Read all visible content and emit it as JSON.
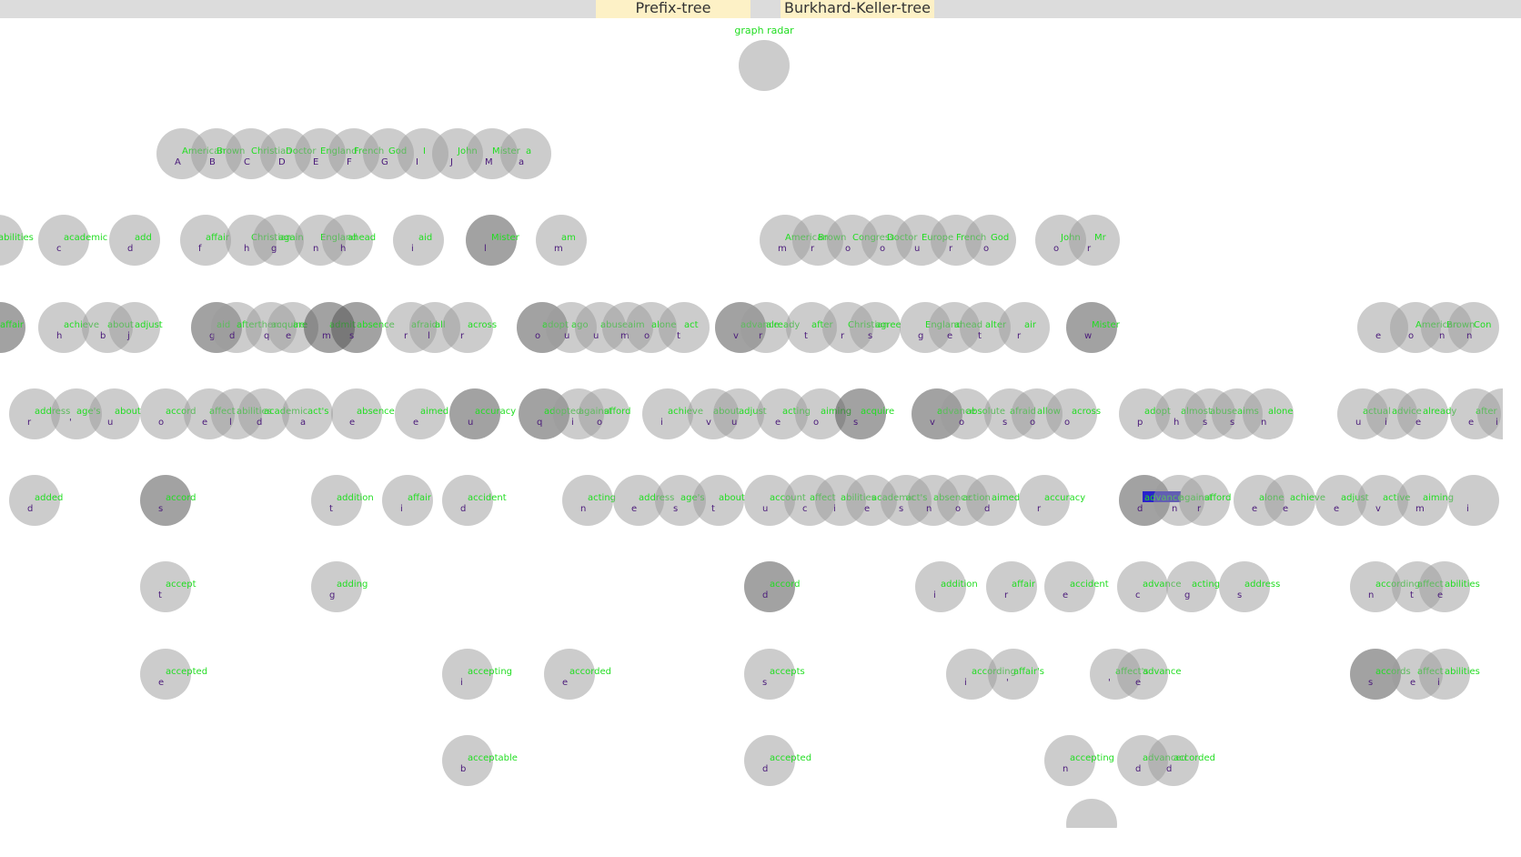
{
  "tabs": [
    {
      "label": "Prefix-tree",
      "selected": false
    },
    {
      "label": "Burkhard-Keller-tree",
      "selected": true
    }
  ],
  "root_caption": "graph radar",
  "highlighted_word": "advance",
  "colors": {
    "topbar": "#dcdcdc",
    "tab": "#fdf1c6",
    "node": "#9a9a9a",
    "node_selected": "#555555",
    "word_label": "#22dd22",
    "key_label": "#4a1a7a",
    "highlight": "#2a22cc"
  },
  "nodes": {
    "row1": [
      {
        "word": "American",
        "key": "A"
      },
      {
        "word": "Brown",
        "key": "B"
      },
      {
        "word": "Christian",
        "key": "C"
      },
      {
        "word": "Doctor",
        "key": "D"
      },
      {
        "word": "England",
        "key": "E"
      },
      {
        "word": "French",
        "key": "F"
      },
      {
        "word": "God",
        "key": "G"
      },
      {
        "word": "I",
        "key": "I"
      },
      {
        "word": "John",
        "key": "J"
      },
      {
        "word": "Mister",
        "key": "M"
      },
      {
        "word": "a",
        "key": "a"
      }
    ],
    "row2": [
      {
        "word": "abilities",
        "key": ""
      },
      {
        "word": "academic",
        "key": "c"
      },
      {
        "word": "add",
        "key": "d"
      },
      {
        "word": "affair",
        "key": "f"
      },
      {
        "word": "Christian",
        "key": "h"
      },
      {
        "word": "again",
        "key": "g"
      },
      {
        "word": "England",
        "key": "n"
      },
      {
        "word": "ahead",
        "key": "h"
      },
      {
        "word": "aid",
        "key": "i"
      },
      {
        "word": "Mister",
        "key": "l"
      },
      {
        "word": "am",
        "key": "m"
      },
      {
        "word": "American",
        "key": "m"
      },
      {
        "word": "Brown",
        "key": "r"
      },
      {
        "word": "Congress",
        "key": "o"
      },
      {
        "word": "Doctor",
        "key": "o"
      },
      {
        "word": "Europe",
        "key": "u"
      },
      {
        "word": "French",
        "key": "r"
      },
      {
        "word": "God",
        "key": "o"
      },
      {
        "word": "John",
        "key": "o"
      },
      {
        "word": "Mr",
        "key": "r"
      }
    ],
    "row3": [
      {
        "word": "affair",
        "key": "f"
      },
      {
        "word": "achieve",
        "key": "h"
      },
      {
        "word": "about",
        "key": "b"
      },
      {
        "word": "adjust",
        "key": "j"
      },
      {
        "word": "aid",
        "key": "g"
      },
      {
        "word": "afterthem",
        "key": "d"
      },
      {
        "word": "acquire",
        "key": "q"
      },
      {
        "word": "are",
        "key": "e"
      },
      {
        "word": "admit",
        "key": "m"
      },
      {
        "word": "absence",
        "key": "s"
      },
      {
        "word": "afraid",
        "key": "r"
      },
      {
        "word": "all",
        "key": "l"
      },
      {
        "word": "across",
        "key": "r"
      },
      {
        "word": "adopt",
        "key": "o"
      },
      {
        "word": "ago",
        "key": "u"
      },
      {
        "word": "abuse",
        "key": "u"
      },
      {
        "word": "aim",
        "key": "m"
      },
      {
        "word": "alone",
        "key": "o"
      },
      {
        "word": "act",
        "key": "t"
      },
      {
        "word": "advance",
        "key": "v"
      },
      {
        "word": "already",
        "key": "r"
      },
      {
        "word": "after",
        "key": "t"
      },
      {
        "word": "Christian",
        "key": "r"
      },
      {
        "word": "agree",
        "key": "s"
      },
      {
        "word": "England",
        "key": "g"
      },
      {
        "word": "ahead",
        "key": "e"
      },
      {
        "word": "alter",
        "key": "t"
      },
      {
        "word": "air",
        "key": "r"
      },
      {
        "word": "Mister",
        "key": "w"
      },
      {
        "word": "",
        "key": "e"
      },
      {
        "word": "American",
        "key": "o"
      },
      {
        "word": "Brown",
        "key": "n"
      },
      {
        "word": "Con",
        "key": "n"
      }
    ],
    "row4": [
      {
        "word": "address",
        "key": "r"
      },
      {
        "word": "age's",
        "key": "'"
      },
      {
        "word": "about",
        "key": "u"
      },
      {
        "word": "accord",
        "key": "o"
      },
      {
        "word": "affect",
        "key": "e"
      },
      {
        "word": "abilities",
        "key": "l"
      },
      {
        "word": "academic",
        "key": "d"
      },
      {
        "word": "act's",
        "key": "a"
      },
      {
        "word": "absence",
        "key": "e"
      },
      {
        "word": "aimed",
        "key": "e"
      },
      {
        "word": "accuracy",
        "key": "u"
      },
      {
        "word": "adopted",
        "key": "q"
      },
      {
        "word": "against",
        "key": "i"
      },
      {
        "word": "afford",
        "key": "o"
      },
      {
        "word": "achieve",
        "key": "i"
      },
      {
        "word": "about",
        "key": "v"
      },
      {
        "word": "adjust",
        "key": "u"
      },
      {
        "word": "acting",
        "key": "e"
      },
      {
        "word": "aiming",
        "key": "o"
      },
      {
        "word": "acquire",
        "key": "s"
      },
      {
        "word": "advance",
        "key": "v"
      },
      {
        "word": "absolute",
        "key": "o"
      },
      {
        "word": "afraid",
        "key": "s"
      },
      {
        "word": "allow",
        "key": "o"
      },
      {
        "word": "across",
        "key": "o"
      },
      {
        "word": "adopt",
        "key": "p"
      },
      {
        "word": "almost",
        "key": "h"
      },
      {
        "word": "abuse",
        "key": "s"
      },
      {
        "word": "aims",
        "key": "s"
      },
      {
        "word": "alone",
        "key": "n"
      },
      {
        "word": "actual",
        "key": "u"
      },
      {
        "word": "advice",
        "key": "i"
      },
      {
        "word": "already",
        "key": "e"
      },
      {
        "word": "after",
        "key": "e"
      },
      {
        "word": "Chr",
        "key": "i"
      }
    ],
    "row5": [
      {
        "word": "added",
        "key": "d"
      },
      {
        "word": "accord",
        "key": "s"
      },
      {
        "word": "addition",
        "key": "t"
      },
      {
        "word": "affair",
        "key": "i"
      },
      {
        "word": "accident",
        "key": "d"
      },
      {
        "word": "acting",
        "key": "n"
      },
      {
        "word": "address",
        "key": "e"
      },
      {
        "word": "age's",
        "key": "s"
      },
      {
        "word": "about",
        "key": "t"
      },
      {
        "word": "account",
        "key": "u"
      },
      {
        "word": "affect",
        "key": "c"
      },
      {
        "word": "abilities",
        "key": "i"
      },
      {
        "word": "academic",
        "key": "e"
      },
      {
        "word": "act's",
        "key": "s"
      },
      {
        "word": "absence",
        "key": "n"
      },
      {
        "word": "action",
        "key": "o"
      },
      {
        "word": "aimed",
        "key": "d"
      },
      {
        "word": "accuracy",
        "key": "r"
      },
      {
        "word": "advance",
        "key": "d"
      },
      {
        "word": "against",
        "key": "n"
      },
      {
        "word": "afford",
        "key": "r"
      },
      {
        "word": "alone",
        "key": "e"
      },
      {
        "word": "achieve",
        "key": "e"
      },
      {
        "word": "adjust",
        "key": "e"
      },
      {
        "word": "active",
        "key": "v"
      },
      {
        "word": "aiming",
        "key": "m"
      },
      {
        "word": "",
        "key": "i"
      }
    ],
    "row6": [
      {
        "word": "accept",
        "key": "t"
      },
      {
        "word": "adding",
        "key": "g"
      },
      {
        "word": "accord",
        "key": "d"
      },
      {
        "word": "addition",
        "key": "i"
      },
      {
        "word": "affair",
        "key": "r"
      },
      {
        "word": "accident",
        "key": "e"
      },
      {
        "word": "advance",
        "key": "c"
      },
      {
        "word": "acting",
        "key": "g"
      },
      {
        "word": "address",
        "key": "s"
      },
      {
        "word": "according",
        "key": "n"
      },
      {
        "word": "affect",
        "key": "t"
      },
      {
        "word": "abilities",
        "key": "e"
      }
    ],
    "row7": [
      {
        "word": "accepted",
        "key": "e"
      },
      {
        "word": "accepting",
        "key": "i"
      },
      {
        "word": "accorded",
        "key": "e"
      },
      {
        "word": "accepts",
        "key": "s"
      },
      {
        "word": "according",
        "key": "i"
      },
      {
        "word": "affair's",
        "key": "'"
      },
      {
        "word": "affect's",
        "key": "'"
      },
      {
        "word": "advance",
        "key": "e"
      },
      {
        "word": "accords",
        "key": "s"
      },
      {
        "word": "affect",
        "key": "e"
      },
      {
        "word": "abilities",
        "key": "i"
      }
    ],
    "row8": [
      {
        "word": "acceptable",
        "key": "b"
      },
      {
        "word": "accepted",
        "key": "d"
      },
      {
        "word": "accepting",
        "key": "n"
      },
      {
        "word": "advanced",
        "key": "d"
      },
      {
        "word": "accorded",
        "key": "d"
      }
    ]
  }
}
